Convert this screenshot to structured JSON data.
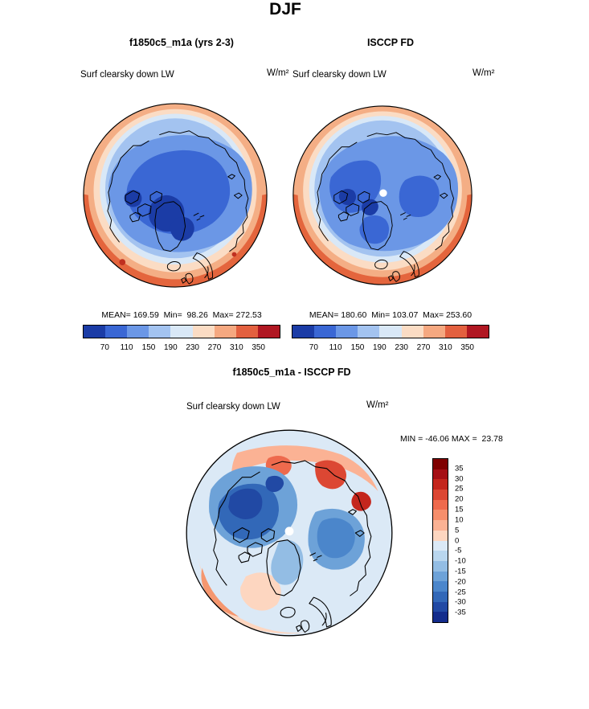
{
  "title": "DJF",
  "panels": {
    "left": {
      "title": "f1850c5_m1a (yrs 2-3)",
      "field": "Surf clearsky down LW",
      "units": "W/m²",
      "stats": "MEAN= 169.59  Min=  98.26  Max= 272.53"
    },
    "right": {
      "title": "ISCCP FD",
      "field": "Surf clearsky down LW",
      "units": "W/m²",
      "stats": "MEAN= 180.60  Min= 103.07  Max= 253.60"
    },
    "diff": {
      "title": "f1850c5_m1a - ISCCP FD",
      "field": "Surf clearsky down LW",
      "units": "W/m²",
      "minmax": "MIN = -46.06 MAX =  23.78"
    }
  },
  "colorbars": {
    "main_ticks": [
      "70",
      "110",
      "150",
      "190",
      "230",
      "270",
      "310",
      "350"
    ],
    "main_palette": [
      "#1b3ca6",
      "#3a67d4",
      "#6b97e6",
      "#a3c3f0",
      "#d9e8f7",
      "#fbdcc4",
      "#f5a880",
      "#e3603f",
      "#b01722"
    ],
    "diff_ticks": [
      "35",
      "30",
      "25",
      "20",
      "15",
      "10",
      "5",
      "0",
      "-5",
      "-10",
      "-15",
      "-20",
      "-25",
      "-30",
      "-35"
    ],
    "diff_palette": [
      "#7f0000",
      "#a50f15",
      "#c4261d",
      "#dc4733",
      "#ee6a4d",
      "#f68e6b",
      "#fbb294",
      "#fdd6c0",
      "#dbe9f6",
      "#b9d6ee",
      "#93bde4",
      "#6da2d8",
      "#4b86cb",
      "#3268b8",
      "#2149a4",
      "#132c8c"
    ]
  },
  "chart_data": [
    {
      "type": "heatmap",
      "subtype": "polar-stereographic-map",
      "season": "DJF",
      "panel": "f1850c5_m1a (yrs 2-3)",
      "variable": "Surf clearsky down LW",
      "units": "W/m²",
      "mean": 169.59,
      "min": 98.26,
      "max": 272.53,
      "colorbar_levels": [
        70,
        110,
        150,
        190,
        230,
        270,
        310,
        350
      ],
      "legend_position": "bottom"
    },
    {
      "type": "heatmap",
      "subtype": "polar-stereographic-map",
      "season": "DJF",
      "panel": "ISCCP FD",
      "variable": "Surf clearsky down LW",
      "units": "W/m²",
      "mean": 180.6,
      "min": 103.07,
      "max": 253.6,
      "colorbar_levels": [
        70,
        110,
        150,
        190,
        230,
        270,
        310,
        350
      ],
      "legend_position": "bottom"
    },
    {
      "type": "heatmap",
      "subtype": "polar-stereographic-difference-map",
      "season": "DJF",
      "panel": "f1850c5_m1a - ISCCP FD",
      "variable": "Surf clearsky down LW",
      "units": "W/m²",
      "min": -46.06,
      "max": 23.78,
      "colorbar_levels": [
        35,
        30,
        25,
        20,
        15,
        10,
        5,
        0,
        -5,
        -10,
        -15,
        -20,
        -25,
        -30,
        -35
      ],
      "legend_position": "right"
    }
  ]
}
